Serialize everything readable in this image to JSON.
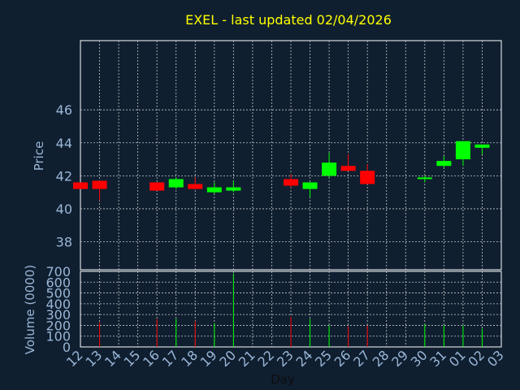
{
  "chart_data": {
    "type": "candlestick",
    "title": "EXEL - last updated 02/04/2026",
    "xlabel": "Day",
    "dates": [
      "12",
      "13",
      "14",
      "15",
      "16",
      "17",
      "18",
      "19",
      "20",
      "21",
      "22",
      "23",
      "24",
      "25",
      "26",
      "27",
      "28",
      "29",
      "30",
      "31",
      "01",
      "02",
      "03"
    ],
    "price_panel": {
      "ylabel": "Price",
      "ylim": [
        36.3,
        50.2
      ],
      "yticks": [
        38,
        40,
        42,
        44,
        46
      ],
      "grid": true,
      "candles": [
        {
          "date": "12",
          "open": 41.6,
          "high": 41.6,
          "low": 41.2,
          "close": 41.2
        },
        {
          "date": "13",
          "open": 41.7,
          "high": 41.7,
          "low": 40.5,
          "close": 41.2
        },
        {
          "date": "16",
          "open": 41.6,
          "high": 41.6,
          "low": 41.1,
          "close": 41.1
        },
        {
          "date": "17",
          "open": 41.3,
          "high": 41.9,
          "low": 41.2,
          "close": 41.8
        },
        {
          "date": "18",
          "open": 41.5,
          "high": 41.9,
          "low": 41.2,
          "close": 41.2
        },
        {
          "date": "19",
          "open": 41.0,
          "high": 41.6,
          "low": 40.9,
          "close": 41.3
        },
        {
          "date": "20",
          "open": 41.1,
          "high": 41.7,
          "low": 41.0,
          "close": 41.3
        },
        {
          "date": "23",
          "open": 41.8,
          "high": 42.1,
          "low": 41.3,
          "close": 41.4
        },
        {
          "date": "24",
          "open": 41.2,
          "high": 41.6,
          "low": 40.7,
          "close": 41.6
        },
        {
          "date": "25",
          "open": 42.0,
          "high": 43.4,
          "low": 41.9,
          "close": 42.8
        },
        {
          "date": "26",
          "open": 42.6,
          "high": 43.3,
          "low": 42.3,
          "close": 42.3
        },
        {
          "date": "27",
          "open": 42.3,
          "high": 42.7,
          "low": 41.5,
          "close": 41.5
        },
        {
          "date": "30",
          "open": 41.8,
          "high": 42.0,
          "low": 41.6,
          "close": 41.9
        },
        {
          "date": "31",
          "open": 42.6,
          "high": 43.2,
          "low": 42.5,
          "close": 42.9
        },
        {
          "date": "01",
          "open": 43.0,
          "high": 44.1,
          "low": 42.6,
          "close": 44.1
        },
        {
          "date": "02",
          "open": 43.7,
          "high": 43.9,
          "low": 43.3,
          "close": 43.9
        }
      ]
    },
    "volume_panel": {
      "ylabel": "Volume (0000)",
      "ylim": [
        0,
        700
      ],
      "yticks": [
        0,
        100,
        200,
        300,
        400,
        500,
        600,
        700
      ],
      "bars": [
        {
          "date": "13",
          "value": 230,
          "direction": "down"
        },
        {
          "date": "16",
          "value": 260,
          "direction": "down"
        },
        {
          "date": "17",
          "value": 260,
          "direction": "up"
        },
        {
          "date": "18",
          "value": 240,
          "direction": "down"
        },
        {
          "date": "19",
          "value": 220,
          "direction": "up"
        },
        {
          "date": "20",
          "value": 680,
          "direction": "up"
        },
        {
          "date": "23",
          "value": 280,
          "direction": "down"
        },
        {
          "date": "24",
          "value": 260,
          "direction": "up"
        },
        {
          "date": "25",
          "value": 200,
          "direction": "up"
        },
        {
          "date": "26",
          "value": 190,
          "direction": "down"
        },
        {
          "date": "27",
          "value": 200,
          "direction": "down"
        },
        {
          "date": "30",
          "value": 210,
          "direction": "up"
        },
        {
          "date": "31",
          "value": 200,
          "direction": "up"
        },
        {
          "date": "01",
          "value": 200,
          "direction": "up"
        },
        {
          "date": "02",
          "value": 170,
          "direction": "up"
        }
      ]
    },
    "colors": {
      "background": "#0f1f30",
      "panel": "#0f1f30",
      "up": "#00ff00",
      "down": "#ff0000",
      "grid": "#c8c8c8",
      "title": "#ffff00",
      "ticks": "#9ab6d6"
    }
  }
}
